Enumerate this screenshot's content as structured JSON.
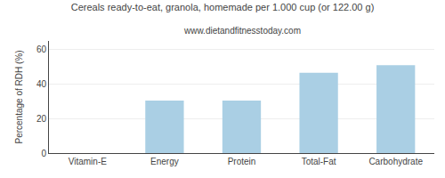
{
  "chart_data": {
    "type": "bar",
    "title": "Cereals ready-to-eat, granola, homemade per 1.000 cup (or 122.00 g)",
    "subtitle": "www.dietandfitnesstoday.com",
    "categories": [
      "Vitamin-E",
      "Energy",
      "Protein",
      "Total-Fat",
      "Carbohydrate"
    ],
    "values": [
      0,
      30.5,
      30.5,
      46.5,
      51.0
    ],
    "color": "#aacfe4",
    "ylabel": "Percentage of RDH (%)",
    "ylim": [
      0,
      65
    ],
    "yticks": [
      0,
      20,
      40,
      60
    ],
    "grid": true
  }
}
